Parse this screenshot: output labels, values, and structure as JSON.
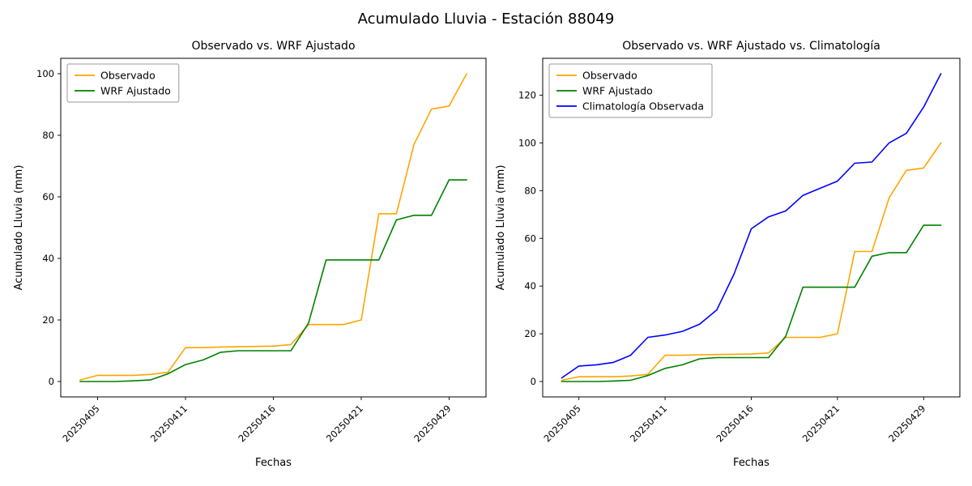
{
  "figure": {
    "suptitle": "Acumulado Lluvia - Estación 88049",
    "background": "#ffffff",
    "text_color": "#000000"
  },
  "chart_data": [
    {
      "type": "line",
      "title": "Observado vs. WRF Ajustado",
      "xlabel": "Fechas",
      "ylabel": "Acumulado Lluvia (mm)",
      "grid": false,
      "legend_position": "upper left",
      "xtick_rotation": 45,
      "x": [
        "20250404",
        "20250405",
        "20250406",
        "20250407",
        "20250408",
        "20250410",
        "20250411",
        "20250412",
        "20250413",
        "20250414",
        "20250415",
        "20250416",
        "20250417",
        "20250418",
        "20250419",
        "20250420",
        "20250421",
        "20250422",
        "20250423",
        "20250425",
        "20250427",
        "20250429",
        "20250430"
      ],
      "xtick_labels": [
        "20250405",
        "20250411",
        "20250416",
        "20250421",
        "20250429"
      ],
      "yticks": [
        0,
        20,
        40,
        60,
        80,
        100
      ],
      "series": [
        {
          "name": "Observado",
          "color": "#ffa500",
          "values": [
            0.5,
            2,
            2,
            2,
            2.3,
            3,
            11,
            11,
            11.2,
            11.3,
            11.4,
            11.5,
            12,
            18.5,
            18.5,
            18.5,
            20,
            54.5,
            54.5,
            77,
            88.5,
            89.5,
            100
          ]
        },
        {
          "name": "WRF Ajustado",
          "color": "#008000",
          "values": [
            0,
            0,
            0,
            0.2,
            0.5,
            2.5,
            5.5,
            7,
            9.5,
            10,
            10,
            10,
            10,
            19,
            39.5,
            39.5,
            39.5,
            39.5,
            52.5,
            54,
            54,
            65.5,
            65.5
          ]
        }
      ]
    },
    {
      "type": "line",
      "title": "Observado vs. WRF Ajustado vs. Climatología",
      "xlabel": "Fechas",
      "ylabel": "Acumulado Lluvia (mm)",
      "grid": false,
      "legend_position": "upper left",
      "xtick_rotation": 45,
      "x": [
        "20250404",
        "20250405",
        "20250406",
        "20250407",
        "20250408",
        "20250410",
        "20250411",
        "20250412",
        "20250413",
        "20250414",
        "20250415",
        "20250416",
        "20250417",
        "20250418",
        "20250419",
        "20250420",
        "20250421",
        "20250422",
        "20250423",
        "20250425",
        "20250427",
        "20250429",
        "20250430"
      ],
      "xtick_labels": [
        "20250405",
        "20250411",
        "20250416",
        "20250421",
        "20250429"
      ],
      "yticks": [
        0,
        20,
        40,
        60,
        80,
        100,
        120
      ],
      "series": [
        {
          "name": "Observado",
          "color": "#ffa500",
          "values": [
            0.5,
            2,
            2,
            2,
            2.3,
            3,
            11,
            11,
            11.2,
            11.3,
            11.4,
            11.5,
            12,
            18.5,
            18.5,
            18.5,
            20,
            54.5,
            54.5,
            77,
            88.5,
            89.5,
            100
          ]
        },
        {
          "name": "WRF Ajustado",
          "color": "#008000",
          "values": [
            0,
            0,
            0,
            0.2,
            0.5,
            2.5,
            5.5,
            7,
            9.5,
            10,
            10,
            10,
            10,
            19,
            39.5,
            39.5,
            39.5,
            39.5,
            52.5,
            54,
            54,
            65.5,
            65.5
          ]
        },
        {
          "name": "Climatología Observada",
          "color": "#0000ff",
          "values": [
            1.5,
            6.5,
            7,
            8,
            11,
            18.5,
            19.5,
            21,
            24,
            30,
            45,
            64,
            69,
            71.5,
            78,
            81,
            84,
            91.5,
            92,
            100,
            104,
            115,
            129
          ]
        }
      ]
    }
  ]
}
